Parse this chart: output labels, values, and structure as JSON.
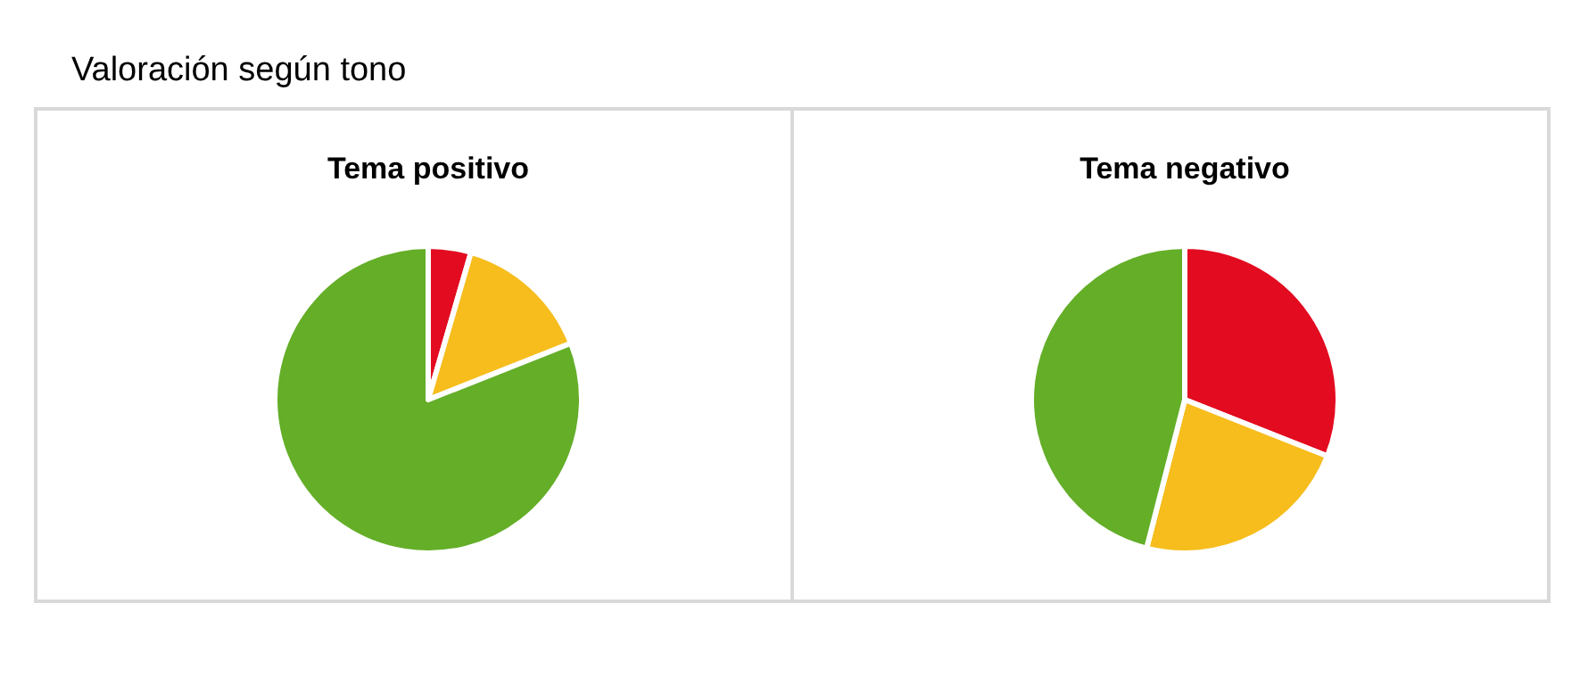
{
  "chart_data": [
    {
      "type": "other",
      "title": "Valoración según tono"
    },
    {
      "type": "pie",
      "title": "Tema positivo",
      "categories": [
        null,
        null,
        null
      ],
      "values": [
        4.5,
        14.5,
        81
      ],
      "colors": [
        "#e30b20",
        "#f6bd1d",
        "#64ae28"
      ]
    },
    {
      "type": "pie",
      "title": "Tema negativo",
      "categories": [
        null,
        null,
        null
      ],
      "values": [
        31,
        23,
        46
      ],
      "colors": [
        "#e30b20",
        "#f6bd1d",
        "#64ae28"
      ]
    }
  ]
}
